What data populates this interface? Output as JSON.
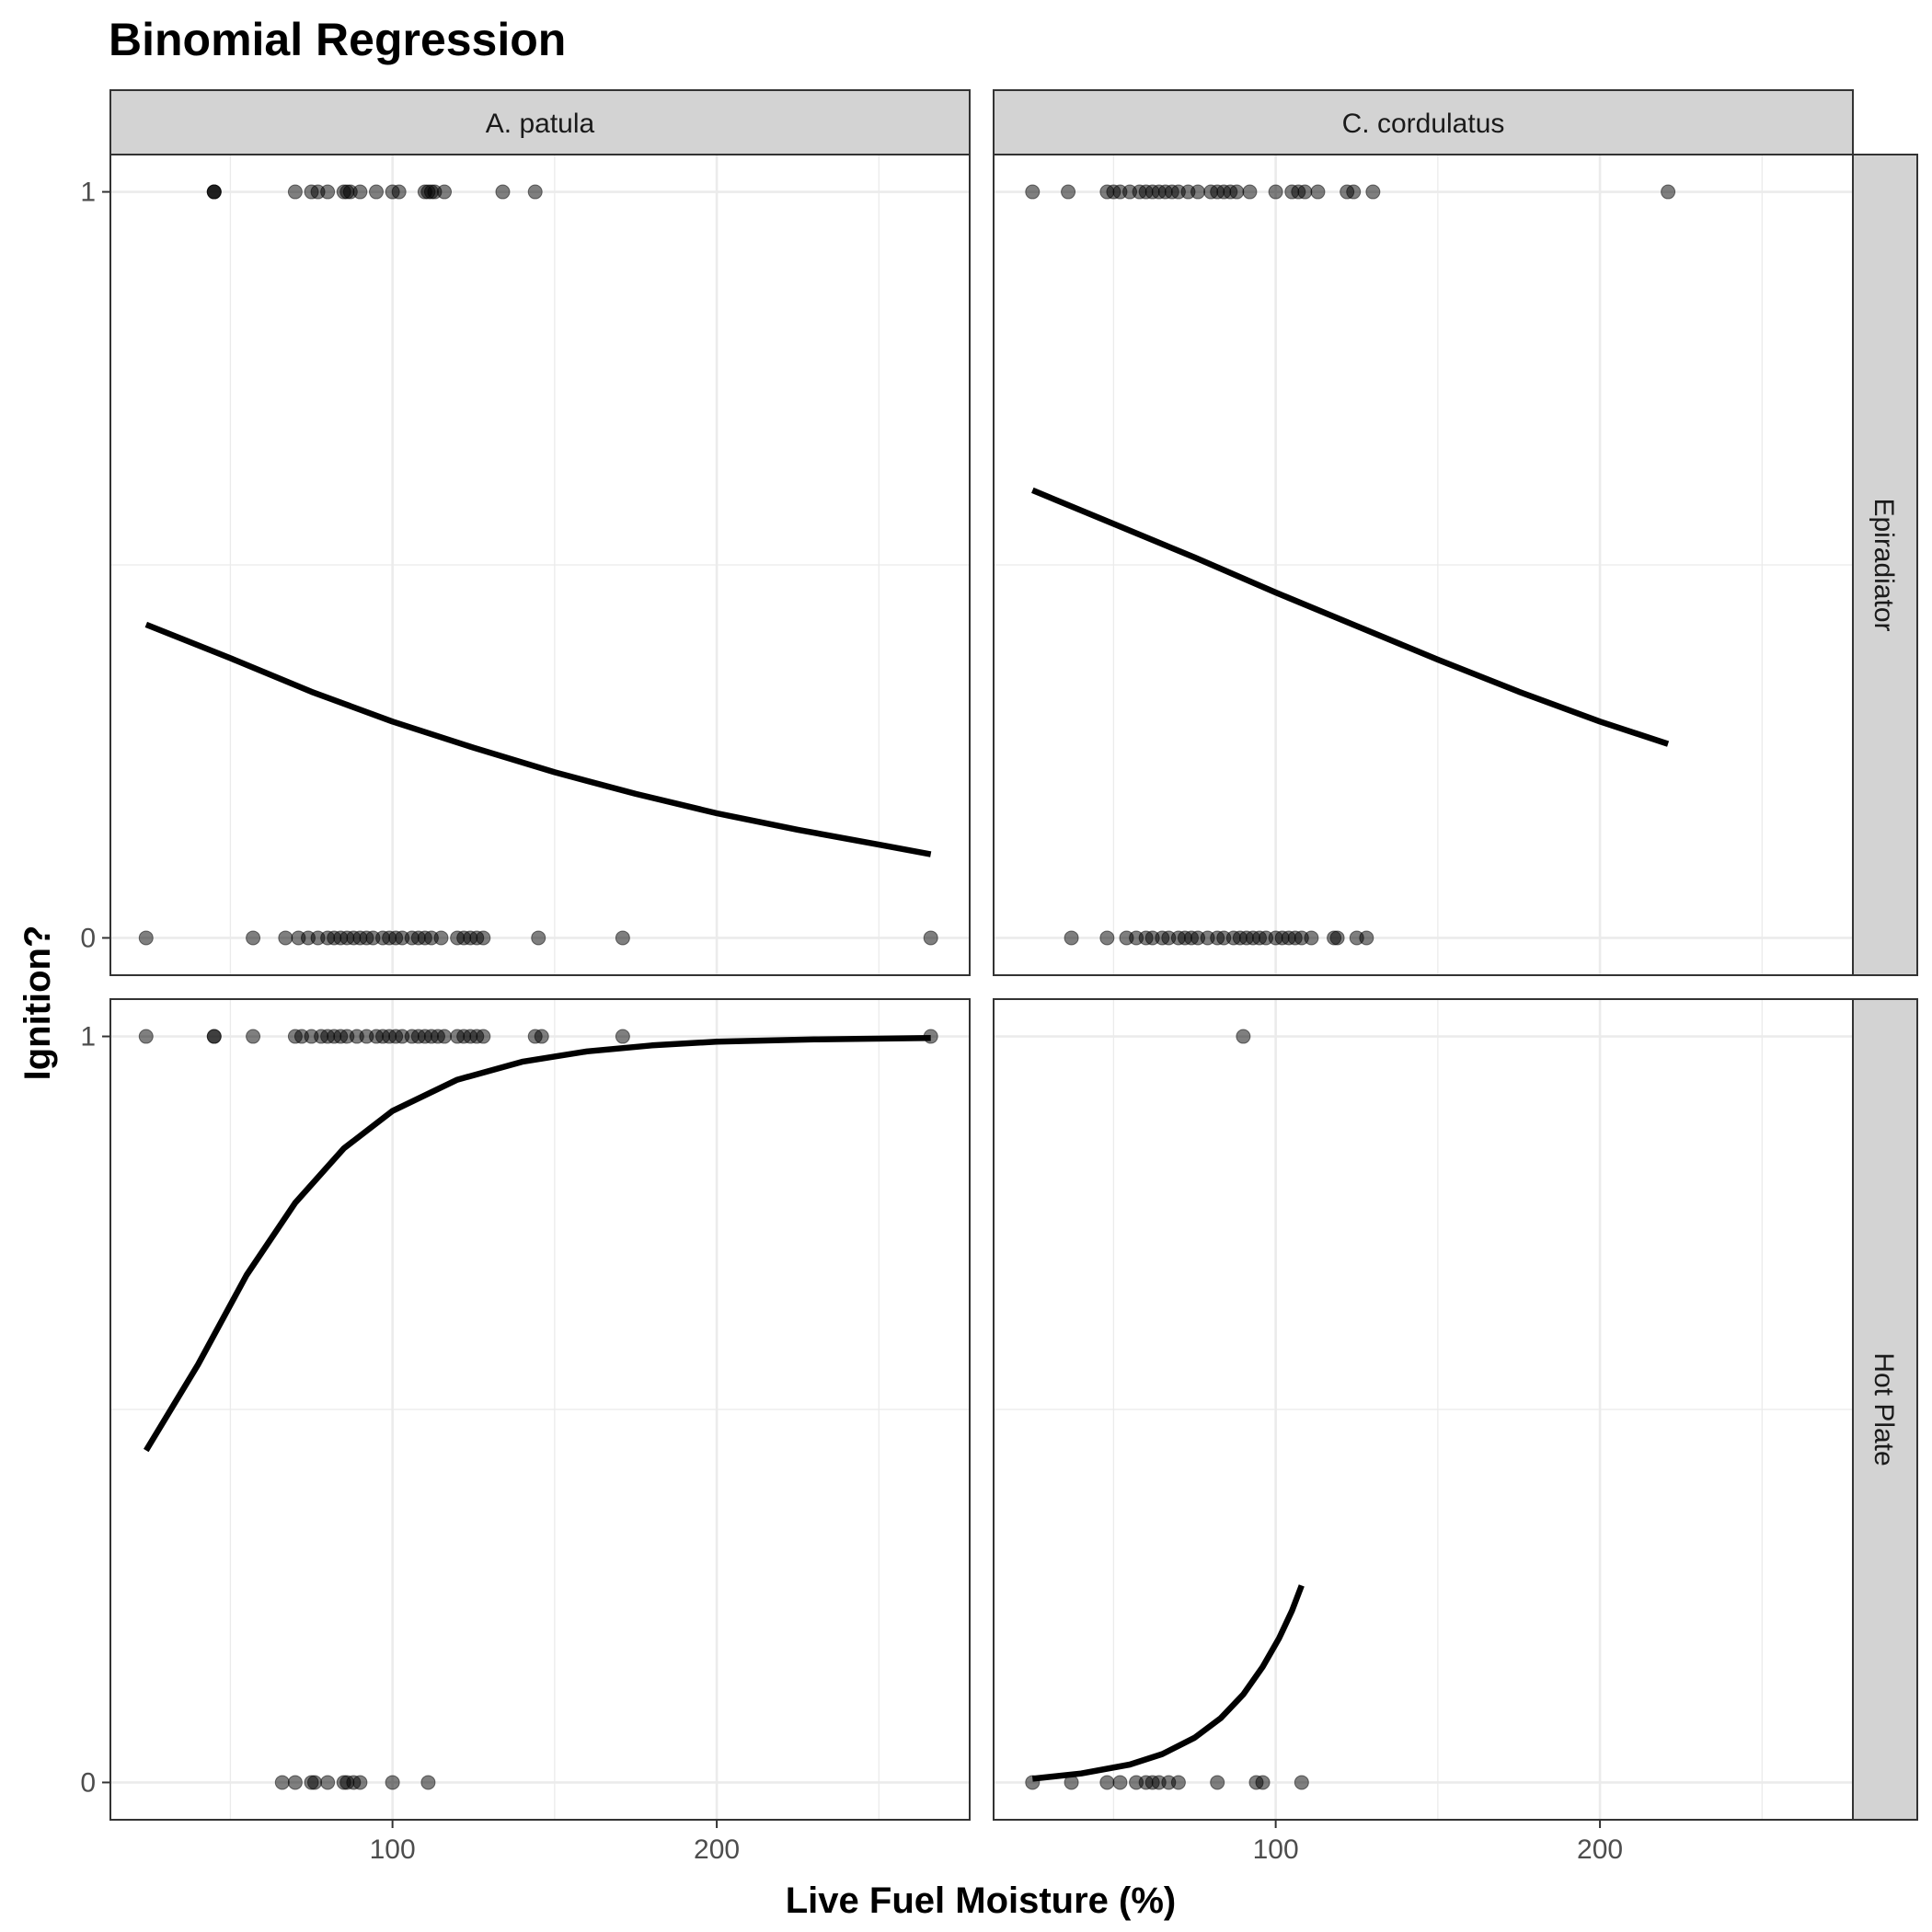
{
  "chart_data": {
    "type": "scatter",
    "title": "Binomial Regression",
    "xlabel": "Live Fuel Moisture (%)",
    "ylabel": "Ignition?",
    "xlim": [
      13,
      278
    ],
    "ylim": [
      -0.05,
      1.05
    ],
    "x_ticks": [
      100,
      200
    ],
    "y_ticks": [
      0,
      1
    ],
    "grid": true,
    "columns": [
      "A. patula",
      "C. cordulatus"
    ],
    "rows": [
      "Epiradiator",
      "Hot Plate"
    ],
    "panels": [
      {
        "column": "A. patula",
        "row": "Epiradiator",
        "points_y1": [
          45,
          45,
          45,
          70,
          75,
          77,
          80,
          85,
          86,
          87,
          90,
          95,
          100,
          102,
          110,
          111,
          112,
          113,
          116,
          134,
          144
        ],
        "points_y0": [
          24,
          57,
          67,
          71,
          74,
          77,
          80,
          82,
          84,
          86,
          88,
          90,
          92,
          94,
          97,
          99,
          101,
          103,
          106,
          108,
          110,
          112,
          115,
          120,
          122,
          124,
          126,
          128,
          145,
          171,
          266
        ],
        "fit": {
          "x": [
            24,
            50,
            75,
            100,
            125,
            150,
            175,
            200,
            225,
            250,
            266
          ],
          "y": [
            0.42,
            0.375,
            0.33,
            0.29,
            0.255,
            0.222,
            0.193,
            0.167,
            0.145,
            0.125,
            0.112
          ]
        }
      },
      {
        "column": "C. cordulatus",
        "row": "Epiradiator",
        "points_y1": [
          25,
          36,
          48,
          50,
          52,
          55,
          58,
          60,
          62,
          64,
          66,
          68,
          70,
          73,
          76,
          80,
          82,
          84,
          86,
          88,
          92,
          100,
          105,
          107,
          109,
          113,
          122,
          124,
          130,
          221
        ],
        "points_y0": [
          37,
          48,
          54,
          57,
          60,
          62,
          65,
          67,
          70,
          72,
          74,
          76,
          79,
          82,
          84,
          87,
          89,
          91,
          93,
          95,
          97,
          100,
          102,
          104,
          106,
          108,
          111,
          118,
          119,
          125,
          128
        ],
        "fit": {
          "x": [
            25,
            50,
            75,
            100,
            125,
            150,
            175,
            200,
            221
          ],
          "y": [
            0.6,
            0.555,
            0.51,
            0.463,
            0.418,
            0.373,
            0.33,
            0.29,
            0.26
          ]
        }
      },
      {
        "column": "A. patula",
        "row": "Hot Plate",
        "points_y1": [
          24,
          45,
          45,
          57,
          70,
          72,
          75,
          78,
          80,
          82,
          84,
          86,
          89,
          92,
          95,
          97,
          99,
          101,
          103,
          106,
          108,
          110,
          112,
          114,
          116,
          120,
          122,
          124,
          126,
          128,
          144,
          146,
          171,
          266
        ],
        "points_y0": [
          66,
          70,
          75,
          76,
          80,
          85,
          86,
          88,
          90,
          100,
          111
        ],
        "fit": {
          "x": [
            24,
            40,
            55,
            70,
            85,
            100,
            120,
            140,
            160,
            180,
            200,
            230,
            266
          ],
          "y": [
            0.445,
            0.56,
            0.68,
            0.777,
            0.85,
            0.9,
            0.942,
            0.966,
            0.98,
            0.988,
            0.993,
            0.996,
            0.998
          ]
        }
      },
      {
        "column": "C. cordulatus",
        "row": "Hot Plate",
        "points_y1": [
          90
        ],
        "points_y0": [
          25,
          37,
          48,
          52,
          57,
          60,
          62,
          64,
          67,
          70,
          82,
          94,
          96,
          108
        ],
        "fit": {
          "x": [
            25,
            40,
            55,
            65,
            75,
            83,
            90,
            96,
            101,
            105,
            108
          ],
          "y": [
            0.005,
            0.012,
            0.024,
            0.038,
            0.06,
            0.086,
            0.118,
            0.155,
            0.193,
            0.23,
            0.264
          ]
        }
      }
    ]
  }
}
